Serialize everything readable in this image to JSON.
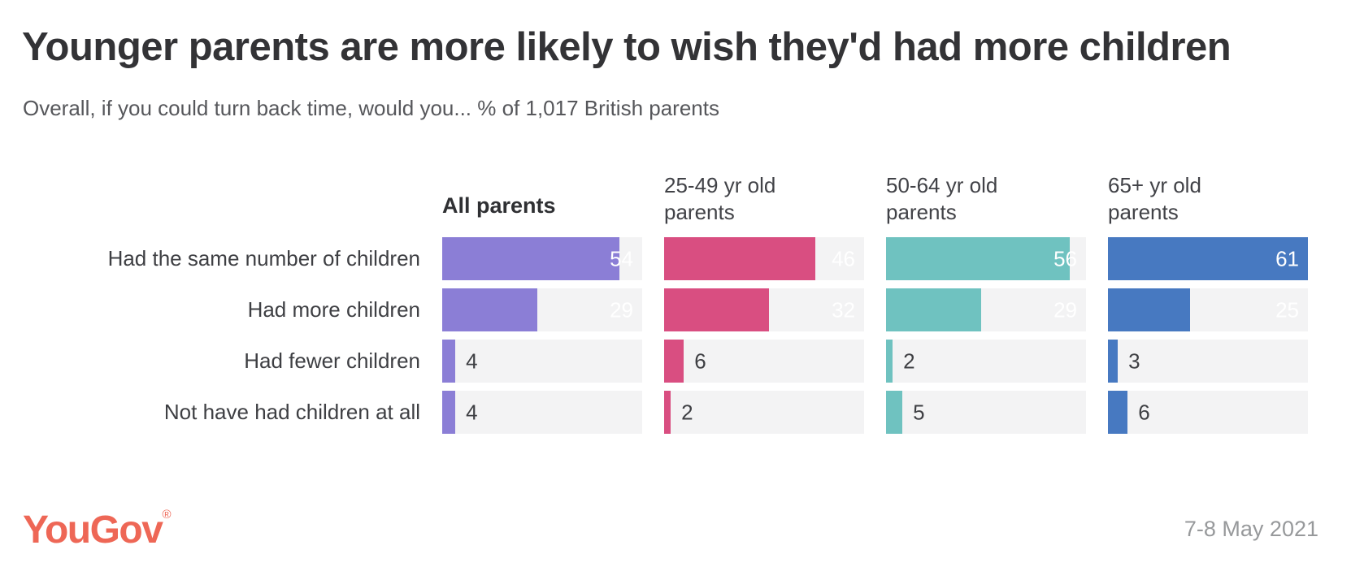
{
  "header": {
    "title": "Younger parents are more likely to wish they'd had more children",
    "subtitle": "Overall, if you could turn back time, would you... % of 1,017 British parents"
  },
  "chart_data": {
    "type": "bar",
    "orientation": "horizontal",
    "max_value": 61,
    "track_color": "#f3f3f4",
    "value_unit": "%",
    "categories": [
      "Had the same number of children",
      "Had more children",
      "Had fewer children",
      "Not have had children at all"
    ],
    "series": [
      {
        "name": "All parents",
        "color": "#8b7ed6",
        "values": [
          54,
          29,
          4,
          4
        ]
      },
      {
        "name": "25-49 yr old parents",
        "color": "#d94e81",
        "values": [
          46,
          32,
          6,
          2
        ]
      },
      {
        "name": "50-64 yr old parents",
        "color": "#6fc2c0",
        "values": [
          56,
          29,
          2,
          5
        ]
      },
      {
        "name": "65+ yr old parents",
        "color": "#4779c1",
        "values": [
          61,
          25,
          3,
          6
        ]
      }
    ]
  },
  "footer": {
    "logo": "YouGov",
    "registered_mark": "®",
    "date": "7-8 May 2021"
  }
}
